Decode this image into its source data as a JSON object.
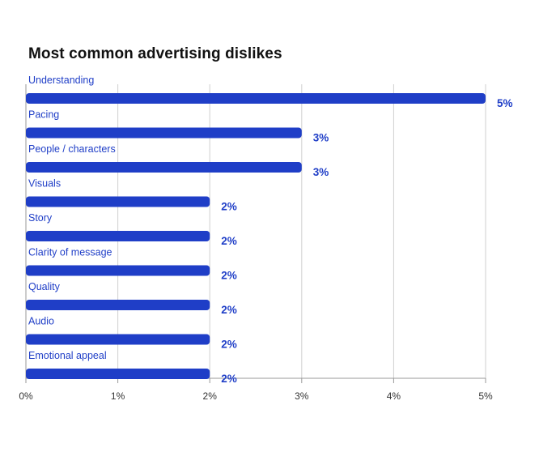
{
  "chart_data": {
    "type": "bar",
    "orientation": "horizontal",
    "title": "Most common advertising dislikes",
    "categories": [
      "Understanding",
      "Pacing",
      "People / characters",
      "Visuals",
      "Story",
      "Clarity of message",
      "Quality",
      "Audio",
      "Emotional appeal"
    ],
    "values": [
      5,
      3,
      3,
      2,
      2,
      2,
      2,
      2,
      2
    ],
    "value_labels": [
      "5%",
      "3%",
      "3%",
      "2%",
      "2%",
      "2%",
      "2%",
      "2%",
      "2%"
    ],
    "x_ticks": [
      "0%",
      "1%",
      "2%",
      "3%",
      "4%",
      "5%"
    ],
    "x_tick_values": [
      0,
      1,
      2,
      3,
      4,
      5
    ],
    "xlim": [
      0,
      5
    ],
    "xlabel": "",
    "ylabel": "",
    "grid": true,
    "colors": {
      "bar": "#1f3ec7",
      "category_label": "#1f3ec7",
      "value_label": "#1f3ec7",
      "gridline": "#cfcfcf",
      "axis": "#999999",
      "tick_label": "#333333",
      "title": "#111111"
    }
  }
}
